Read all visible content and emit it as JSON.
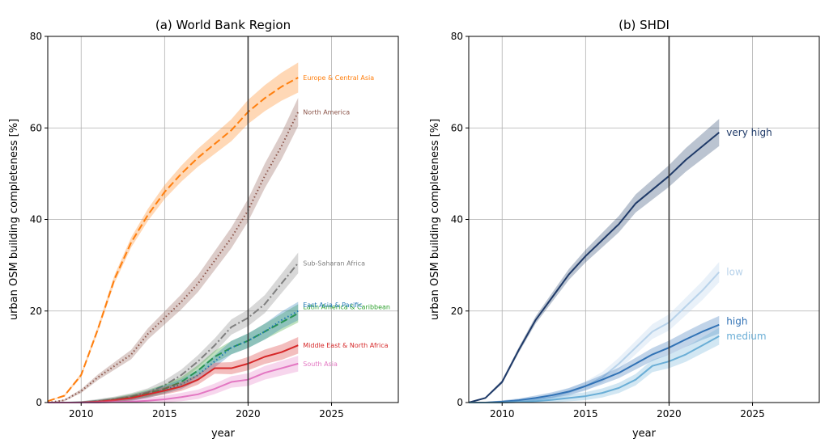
{
  "chart_data": [
    {
      "type": "line",
      "title": "(a) World Bank Region",
      "xlabel": "year",
      "ylabel": "urban OSM building completeness [%]",
      "xlim": [
        2008,
        2029
      ],
      "ylim": [
        0,
        80
      ],
      "xticks": [
        2010,
        2015,
        2020,
        2025
      ],
      "yticks": [
        0,
        20,
        40,
        60,
        80
      ],
      "grid": true,
      "vertical_marker": 2020,
      "x": [
        2008,
        2009,
        2010,
        2011,
        2012,
        2013,
        2014,
        2015,
        2016,
        2017,
        2018,
        2019,
        2020,
        2021,
        2022,
        2023
      ],
      "series": [
        {
          "name": "Europe & Central Asia",
          "color": "#ff7f0e",
          "style": "dashed",
          "values": [
            0.3,
            1.5,
            6,
            16,
            27,
            35,
            41,
            46,
            50,
            53.5,
            56.5,
            59.5,
            63.5,
            66.5,
            69,
            71
          ]
        },
        {
          "name": "North America",
          "color": "#8c564b",
          "style": "dotted",
          "values": [
            0,
            0.5,
            2.5,
            5.5,
            8,
            10.5,
            15,
            18.5,
            22,
            26,
            31,
            36,
            42,
            49.5,
            56,
            63.5
          ]
        },
        {
          "name": "Sub-Saharan Africa",
          "color": "#7f7f7f",
          "style": "dashdot",
          "values": [
            0,
            0,
            0,
            0.3,
            0.7,
            1.3,
            2.2,
            3.8,
            6,
            9,
            12.5,
            16.5,
            18.5,
            21.5,
            26,
            30.5
          ]
        },
        {
          "name": "Latin America & Caribbean",
          "color": "#2ca02c",
          "style": "dashed",
          "values": [
            0,
            0,
            0,
            0.2,
            0.6,
            1.2,
            2,
            3,
            4.5,
            7,
            10,
            12,
            13.5,
            15.5,
            17.5,
            19.5
          ]
        },
        {
          "name": "East Asia & Pacific",
          "color": "#1f77b4",
          "style": "dotted",
          "values": [
            0,
            0,
            0,
            0.2,
            0.5,
            1,
            1.8,
            2.8,
            4,
            6,
            9,
            12,
            13.5,
            15.5,
            18,
            20
          ]
        },
        {
          "name": "Middle East & North Africa",
          "color": "#d62728",
          "style": "solid",
          "values": [
            0,
            0,
            0,
            0.2,
            0.5,
            1,
            1.8,
            2.6,
            3.5,
            5,
            7.5,
            7.5,
            8.5,
            10,
            11,
            12.5
          ]
        },
        {
          "name": "South Asia",
          "color": "#e377c2",
          "style": "solid",
          "values": [
            0,
            0,
            0,
            0,
            0.1,
            0.2,
            0.4,
            0.7,
            1.2,
            1.8,
            3,
            4.5,
            5,
            6.5,
            7.5,
            8.5
          ]
        }
      ]
    },
    {
      "type": "line",
      "title": "(b) SHDI",
      "xlabel": "year",
      "ylabel": "urban OSM building completeness [%]",
      "xlim": [
        2008,
        2029
      ],
      "ylim": [
        0,
        80
      ],
      "xticks": [
        2010,
        2015,
        2020,
        2025
      ],
      "yticks": [
        0,
        20,
        40,
        60,
        80
      ],
      "grid": true,
      "vertical_marker": 2020,
      "x": [
        2008,
        2009,
        2010,
        2011,
        2012,
        2013,
        2014,
        2015,
        2016,
        2017,
        2018,
        2019,
        2020,
        2021,
        2022,
        2023
      ],
      "series": [
        {
          "name": "very high",
          "color": "#1f3a68",
          "style": "solid",
          "values": [
            0,
            1,
            4.5,
            11.5,
            18,
            23,
            28,
            32,
            35.5,
            39,
            43.5,
            46.5,
            49.5,
            53,
            56,
            59
          ]
        },
        {
          "name": "low",
          "color": "#b7d2ea",
          "style": "solid",
          "values": [
            0,
            0,
            0,
            0.2,
            0.6,
            1.2,
            2.2,
            3.6,
            5.5,
            8.5,
            12,
            15.5,
            17.5,
            21,
            24.5,
            28.5
          ]
        },
        {
          "name": "high",
          "color": "#3172b5",
          "style": "solid",
          "values": [
            0,
            0,
            0.2,
            0.5,
            1,
            1.6,
            2.4,
            3.6,
            5,
            6.5,
            8.5,
            10.5,
            12,
            13.8,
            15.5,
            17
          ]
        },
        {
          "name": "medium",
          "color": "#6aaed6",
          "style": "solid",
          "values": [
            0,
            0,
            0,
            0.1,
            0.3,
            0.6,
            1,
            1.4,
            2.1,
            3.2,
            5,
            8,
            9,
            10.5,
            12.5,
            14.5
          ]
        }
      ]
    }
  ]
}
